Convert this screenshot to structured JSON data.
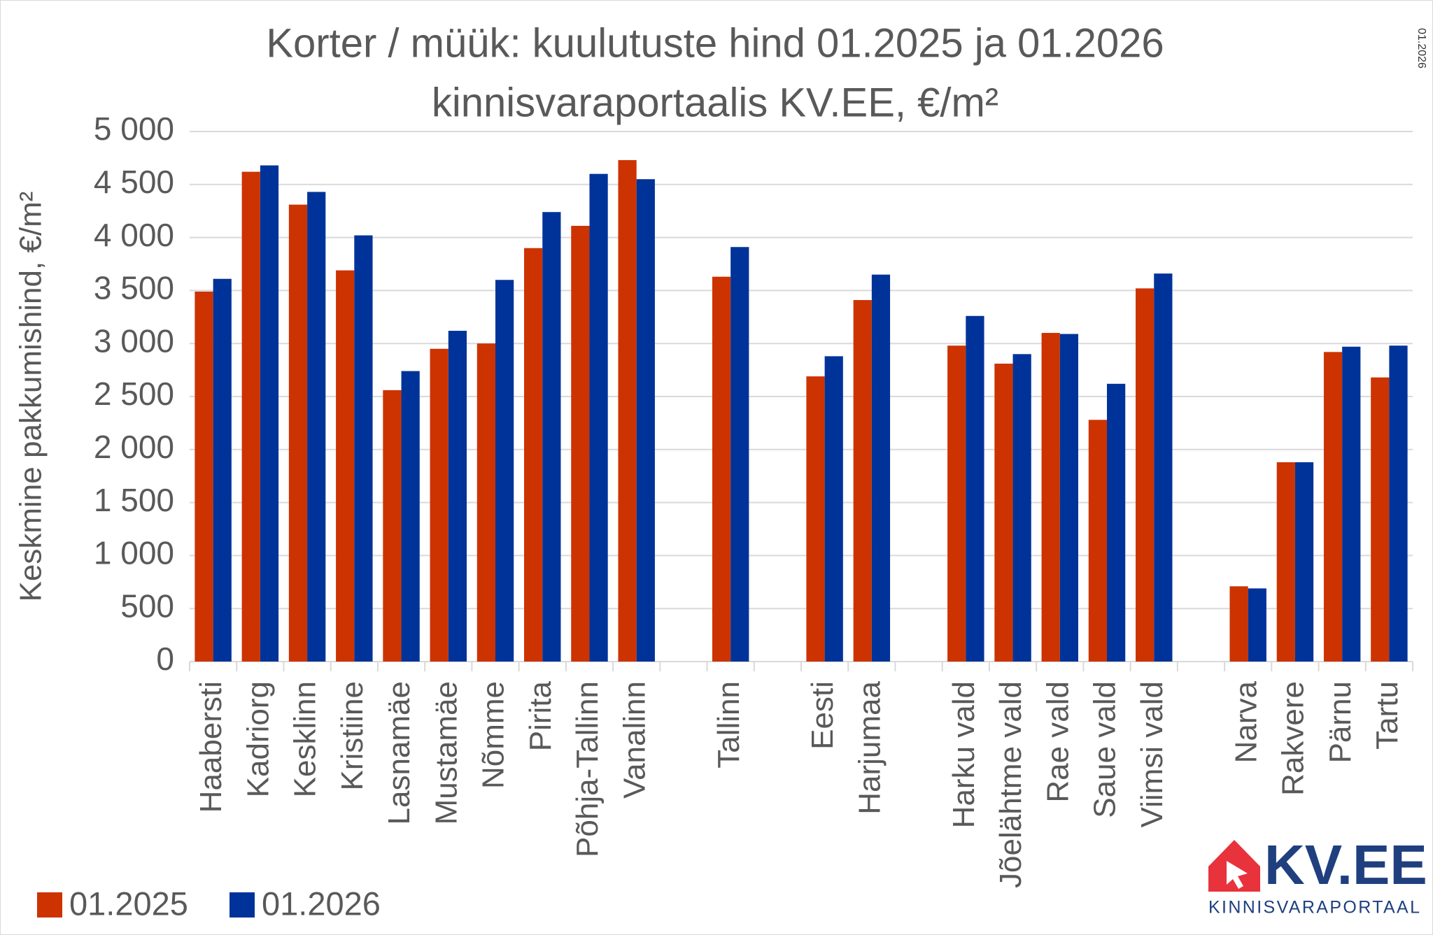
{
  "chart_data": {
    "type": "bar",
    "title": "Korter / müük: kuulutuste hind 01.2025 ja 01.2026",
    "subtitle": "kinnisvaraportaalis KV.EE, €/m²",
    "y_label": "Keskmine pakkumishind, €/m²",
    "note": "01.2026",
    "categories": [
      "Haabersti",
      "Kadriorg",
      "Kesklinn",
      "Kristiine",
      "Lasnamäe",
      "Mustamäe",
      "Nõmme",
      "Pirita",
      "Põhja-Tallinn",
      "Vanalinn",
      null,
      "Tallinn",
      null,
      "Eesti",
      "Harjumaa",
      null,
      "Harku vald",
      "Jõelähtme vald",
      "Rae vald",
      "Saue vald",
      "Viimsi vald",
      null,
      "Narva",
      "Rakvere",
      "Pärnu",
      "Tartu"
    ],
    "series": [
      {
        "name": "01.2025",
        "color": "#cc3300",
        "values": [
          3490,
          4620,
          4310,
          3690,
          2560,
          2950,
          3000,
          3900,
          4110,
          4730,
          null,
          3630,
          null,
          2690,
          3410,
          null,
          2980,
          2810,
          3100,
          2280,
          3520,
          null,
          710,
          1880,
          2920,
          2680
        ]
      },
      {
        "name": "01.2026",
        "color": "#003399",
        "values": [
          3610,
          4680,
          4430,
          4020,
          2740,
          3120,
          3600,
          4240,
          4600,
          4550,
          null,
          3910,
          null,
          2880,
          3650,
          null,
          3260,
          2900,
          3090,
          2620,
          3660,
          null,
          690,
          1880,
          2970,
          2980
        ]
      }
    ],
    "ylim": [
      0,
      5000
    ],
    "yticks": [
      0,
      500,
      {
        "value": 1000,
        "label": "1 000"
      },
      {
        "value": 1500,
        "label": "1 500"
      },
      {
        "value": 2000,
        "label": "2 000"
      },
      {
        "value": 2500,
        "label": "2 500"
      },
      {
        "value": 3000,
        "label": "3 000"
      },
      {
        "value": 3500,
        "label": "3 500"
      },
      {
        "value": 4000,
        "label": "4 000"
      },
      {
        "value": 4500,
        "label": "4 500"
      },
      {
        "value": 5000,
        "label": "5 000"
      }
    ],
    "grid": true,
    "legend": "bottom-left"
  },
  "logo": {
    "brand": "KV.EE",
    "tagline": "KINNISVARAPORTAAL"
  }
}
